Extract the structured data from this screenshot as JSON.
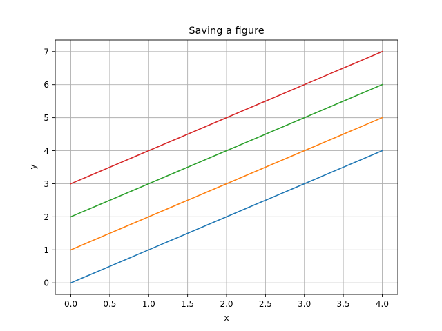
{
  "chart_data": {
    "type": "line",
    "title": "Saving a figure",
    "xlabel": "x",
    "ylabel": "y",
    "x": [
      0,
      1,
      2,
      3,
      4
    ],
    "xlim": [
      -0.2,
      4.2
    ],
    "ylim": [
      -0.35,
      7.35
    ],
    "xticks": [
      "0.0",
      "0.5",
      "1.0",
      "1.5",
      "2.0",
      "2.5",
      "3.0",
      "3.5",
      "4.0"
    ],
    "yticks": [
      "0",
      "1",
      "2",
      "3",
      "4",
      "5",
      "6",
      "7"
    ],
    "grid": true,
    "series": [
      {
        "values": [
          0,
          1,
          2,
          3,
          4
        ],
        "color": "#1f77b4"
      },
      {
        "values": [
          1,
          2,
          3,
          4,
          5
        ],
        "color": "#ff7f0e"
      },
      {
        "values": [
          2,
          3,
          4,
          5,
          6
        ],
        "color": "#2ca02c"
      },
      {
        "values": [
          3,
          4,
          5,
          6,
          7
        ],
        "color": "#d62728"
      }
    ]
  }
}
